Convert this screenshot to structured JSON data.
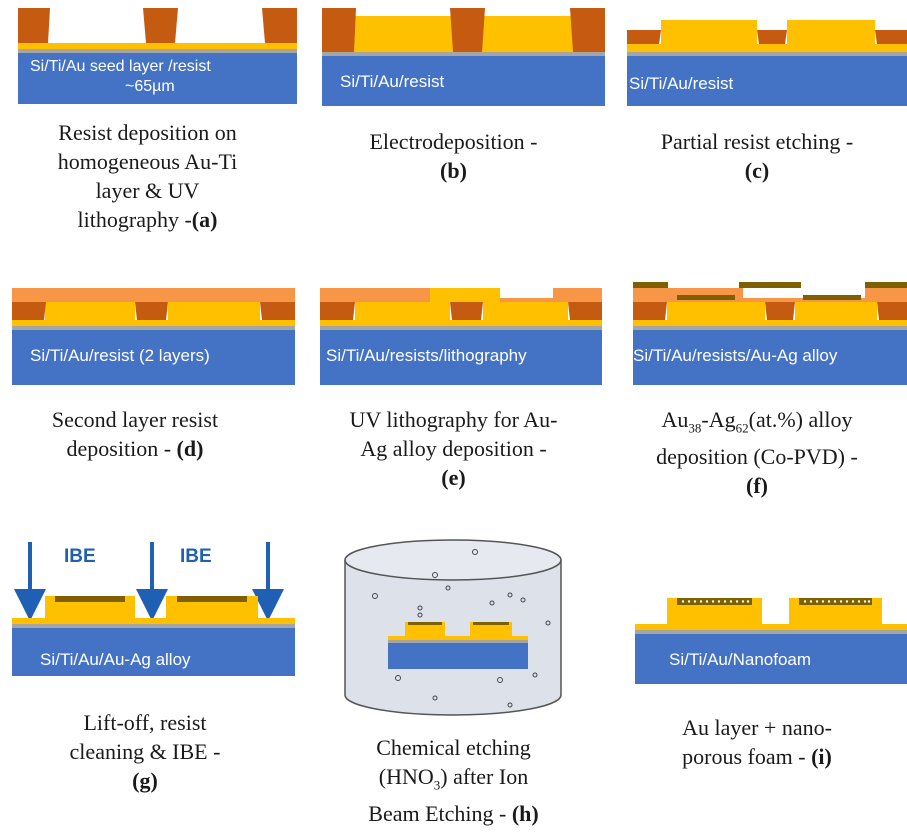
{
  "panels": {
    "a": {
      "label_line1": "Si/Ti/Au seed layer /resist",
      "label_line2": "~65µm",
      "caption": [
        "Resist deposition on",
        "homogeneous Au-Ti",
        "layer & UV",
        "lithography -"
      ],
      "tag": "(a)"
    },
    "b": {
      "label": "Si/Ti/Au/resist",
      "caption": [
        "Electrodeposition -"
      ],
      "tag": "(b)"
    },
    "c": {
      "label": "Si/Ti/Au/resist",
      "caption": [
        "Partial resist etching -"
      ],
      "tag": "(c)"
    },
    "d": {
      "label": "Si/Ti/Au/resist (2 layers)",
      "caption": [
        "Second layer resist",
        "deposition - "
      ],
      "tag": "(d)"
    },
    "e": {
      "label": "Si/Ti/Au/resists/lithography",
      "caption": [
        "UV lithography for Au-",
        "Ag alloy deposition -"
      ],
      "tag": "(e)"
    },
    "f": {
      "label": "Si/Ti/Au/resists/Au-Ag alloy",
      "caption_au": "Au",
      "caption_au_sub": "38",
      "caption_ag": "-Ag",
      "caption_ag_sub": "62",
      "caption_rest": "(at.%) alloy",
      "caption_line2": "deposition (Co-PVD) -",
      "tag": "(f)"
    },
    "g": {
      "label": "Si/Ti/Au/Au-Ag alloy",
      "ibe_1": "IBE",
      "ibe_2": "IBE",
      "caption": [
        "Lift-off, resist",
        "cleaning & IBE -"
      ],
      "tag": "(g)"
    },
    "h": {
      "caption_line1": "Chemical etching",
      "caption_open": "(HNO",
      "caption_sub": "3",
      "caption_close": ") after Ion",
      "caption_line3": "Beam Etching - ",
      "tag": "(h)"
    },
    "i": {
      "label": "Si/Ti/Au/Nanofoam",
      "caption": [
        "Au layer + nano-",
        "porous foam - "
      ],
      "tag": "(i)"
    }
  },
  "colors": {
    "silicon_blue": "#4472c4",
    "gold": "#ffc000",
    "resist_brown": "#c55a11",
    "resist_orange": "#f79646",
    "seed_gray": "#a5a5a5",
    "alloy_dark": "#7f6000",
    "arrow_blue": "#1f5fb4"
  }
}
